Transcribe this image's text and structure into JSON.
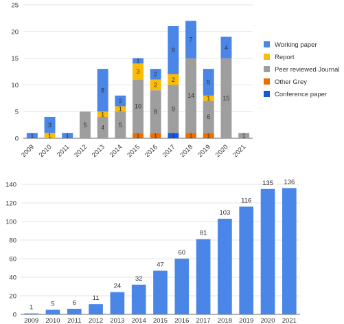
{
  "chart_data": [
    {
      "type": "bar",
      "stacked": true,
      "categories": [
        "2009",
        "2010",
        "2011",
        "2012",
        "2013",
        "2014",
        "2015",
        "2016",
        "2017",
        "2018",
        "2019",
        "2020",
        "2021"
      ],
      "series": [
        {
          "name": "Conference paper",
          "color": "#1a56db",
          "values": [
            0,
            0,
            0,
            0,
            0,
            0,
            0,
            0,
            1,
            0,
            0,
            0,
            0
          ]
        },
        {
          "name": "Other Grey",
          "color": "#ef6c00",
          "values": [
            0,
            0,
            0,
            0,
            0,
            0,
            1,
            1,
            0,
            1,
            1,
            0,
            0
          ]
        },
        {
          "name": "Peer reviewed Journal",
          "color": "#9e9e9e",
          "values": [
            0,
            0,
            0,
            5,
            4,
            5,
            10,
            8,
            9,
            14,
            6,
            15,
            1
          ]
        },
        {
          "name": "Report",
          "color": "#fbbc04",
          "values": [
            0,
            1,
            0,
            0,
            1,
            1,
            3,
            2,
            2,
            0,
            1,
            0,
            0
          ]
        },
        {
          "name": "Working paper",
          "color": "#4a86e8",
          "values": [
            1,
            3,
            1,
            0,
            8,
            2,
            1,
            2,
            9,
            7,
            5,
            4,
            0
          ]
        }
      ],
      "legend_order": [
        "Working paper",
        "Report",
        "Peer reviewed Journal",
        "Other Grey",
        "Conference paper"
      ],
      "legend_position": "right",
      "ylim": [
        0,
        25
      ],
      "yticks": [
        0,
        5,
        10,
        15,
        20,
        25
      ],
      "grid": true,
      "title": "",
      "xlabel": "",
      "ylabel": ""
    },
    {
      "type": "bar",
      "categories": [
        "2009",
        "2010",
        "2011",
        "2012",
        "2013",
        "2014",
        "2015",
        "2016",
        "2017",
        "2018",
        "2019",
        "2020",
        "2021"
      ],
      "values": [
        1,
        5,
        6,
        11,
        24,
        32,
        47,
        60,
        81,
        103,
        116,
        135,
        136
      ],
      "color": "#4a86e8",
      "data_labels": true,
      "ylim": [
        0,
        140
      ],
      "yticks": [
        0,
        20,
        40,
        60,
        80,
        100,
        120,
        140
      ],
      "grid": true,
      "title": "",
      "xlabel": "",
      "ylabel": ""
    }
  ]
}
